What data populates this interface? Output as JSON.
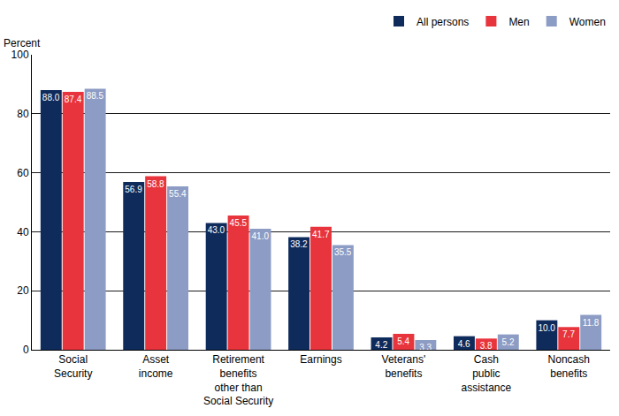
{
  "chart_data": {
    "type": "bar",
    "ylabel": "Percent",
    "categories": [
      "Social\nSecurity",
      "Asset\nincome",
      "Retirement\nbenefits\nother than\nSocial Security",
      "Earnings",
      "Veterans'\nbenefits",
      "Cash\npublic\nassistance",
      "Noncash\nbenefits"
    ],
    "series": [
      {
        "name": "All persons",
        "color": "#0e2b5c",
        "values": [
          88.0,
          56.9,
          43.0,
          38.2,
          4.2,
          4.6,
          10.0
        ],
        "value_labels": [
          "88.0",
          "56.9",
          "43.0",
          "38.2",
          "4.2",
          "4.6",
          "10.0"
        ]
      },
      {
        "name": "Men",
        "color": "#e8343c",
        "values": [
          87.4,
          58.8,
          45.5,
          41.7,
          5.4,
          3.8,
          7.7
        ],
        "value_labels": [
          "87.4",
          "58.8",
          "45.5",
          "41.7",
          "5.4",
          "3.8",
          "7.7"
        ]
      },
      {
        "name": "Women",
        "color": "#8c9cc4",
        "values": [
          88.5,
          55.4,
          41.0,
          35.5,
          3.3,
          5.2,
          11.8
        ],
        "value_labels": [
          "88.5",
          "55.4",
          "41.0",
          "35.5",
          "3.3",
          "5.2",
          "11.8"
        ]
      }
    ],
    "ylim": [
      0,
      100
    ],
    "yticks": [
      0,
      20,
      40,
      60,
      80,
      100
    ],
    "grid": true,
    "legend": "top right",
    "data_labels": true
  }
}
